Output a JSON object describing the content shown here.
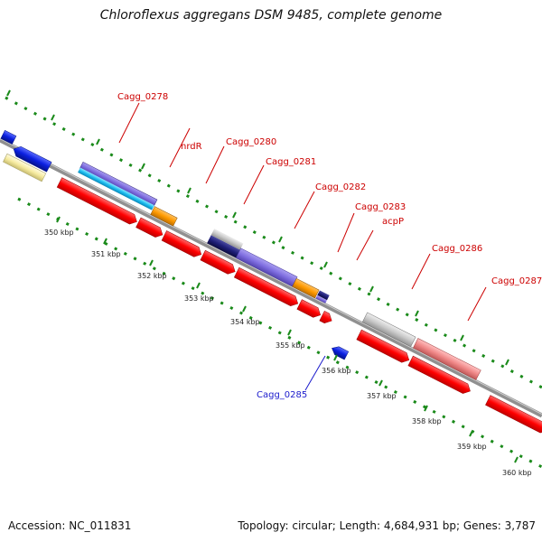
{
  "title": "Chloroflexus aggregans DSM 9485, complete genome",
  "accession_label": "Accession: NC_011831",
  "summary_label": "Topology: circular; Length: 4,684,931 bp; Genes: 3,787",
  "colors": {
    "cds_red": "#ff0000",
    "cds_blue": "#0a1fe0",
    "label_red": "#cc0000",
    "label_blue": "#1a1acc",
    "tick_green": "#1a8a1a",
    "backbone": "#8c8c8c"
  },
  "scale": {
    "ticks": [
      "350 kbp",
      "351 kbp",
      "352 kbp",
      "353 kbp",
      "354 kbp",
      "355 kbp",
      "356 kbp",
      "357 kbp",
      "358 kbp",
      "359 kbp",
      "360 kbp"
    ]
  },
  "genes": [
    {
      "name": "Cagg_0278",
      "color": "#cc0000"
    },
    {
      "name": "nrdR",
      "color": "#cc0000"
    },
    {
      "name": "Cagg_0280",
      "color": "#cc0000"
    },
    {
      "name": "Cagg_0281",
      "color": "#cc0000"
    },
    {
      "name": "Cagg_0282",
      "color": "#cc0000"
    },
    {
      "name": "Cagg_0283",
      "color": "#cc0000"
    },
    {
      "name": "acpP",
      "color": "#cc0000"
    },
    {
      "name": "Cagg_0286",
      "color": "#cc0000"
    },
    {
      "name": "Cagg_0287",
      "color": "#cc0000"
    },
    {
      "name": "Cagg_0285",
      "color": "#1a1acc"
    }
  ]
}
